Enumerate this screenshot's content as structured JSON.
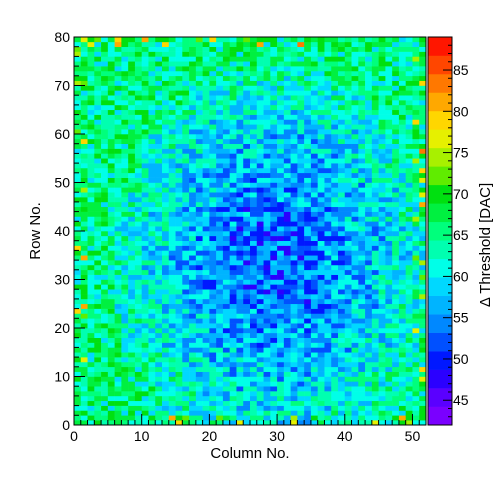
{
  "chart_data": {
    "type": "heatmap",
    "title": "",
    "xlabel": "Column No.",
    "ylabel": "Row No.",
    "zlabel": "Δ Threshold [DAC]",
    "xlim": [
      0,
      52
    ],
    "ylim": [
      0,
      80
    ],
    "zlim": [
      42,
      89
    ],
    "n_columns": 52,
    "n_rows": 80,
    "x_ticks": [
      "0",
      "10",
      "20",
      "30",
      "40",
      "50"
    ],
    "y_ticks": [
      "0",
      "10",
      "20",
      "30",
      "40",
      "50",
      "60",
      "70",
      "80"
    ],
    "z_ticks": [
      "45",
      "50",
      "55",
      "60",
      "65",
      "70",
      "75",
      "80",
      "85"
    ],
    "value_model": {
      "center_column": 29,
      "center_row": 33,
      "center_value": 52,
      "edge_value": 65,
      "noise_amplitude": 6,
      "description_note": "Values are lowest (~50 DAC) near column 29, row 33 and rise to ~63-68 DAC toward the edges; isolated hot pixels up to ~80 DAC at the borders."
    },
    "palette": [
      "#7a00ff",
      "#5a00ff",
      "#2b00ff",
      "#0018ff",
      "#0050ff",
      "#0088ff",
      "#00b4ff",
      "#00d8ff",
      "#00ffe8",
      "#00ffb0",
      "#00ff7c",
      "#00f040",
      "#00e010",
      "#60ec00",
      "#a8f000",
      "#e6f000",
      "#ffd600",
      "#ffa800",
      "#ff7800",
      "#ff4600",
      "#ff1600"
    ]
  }
}
